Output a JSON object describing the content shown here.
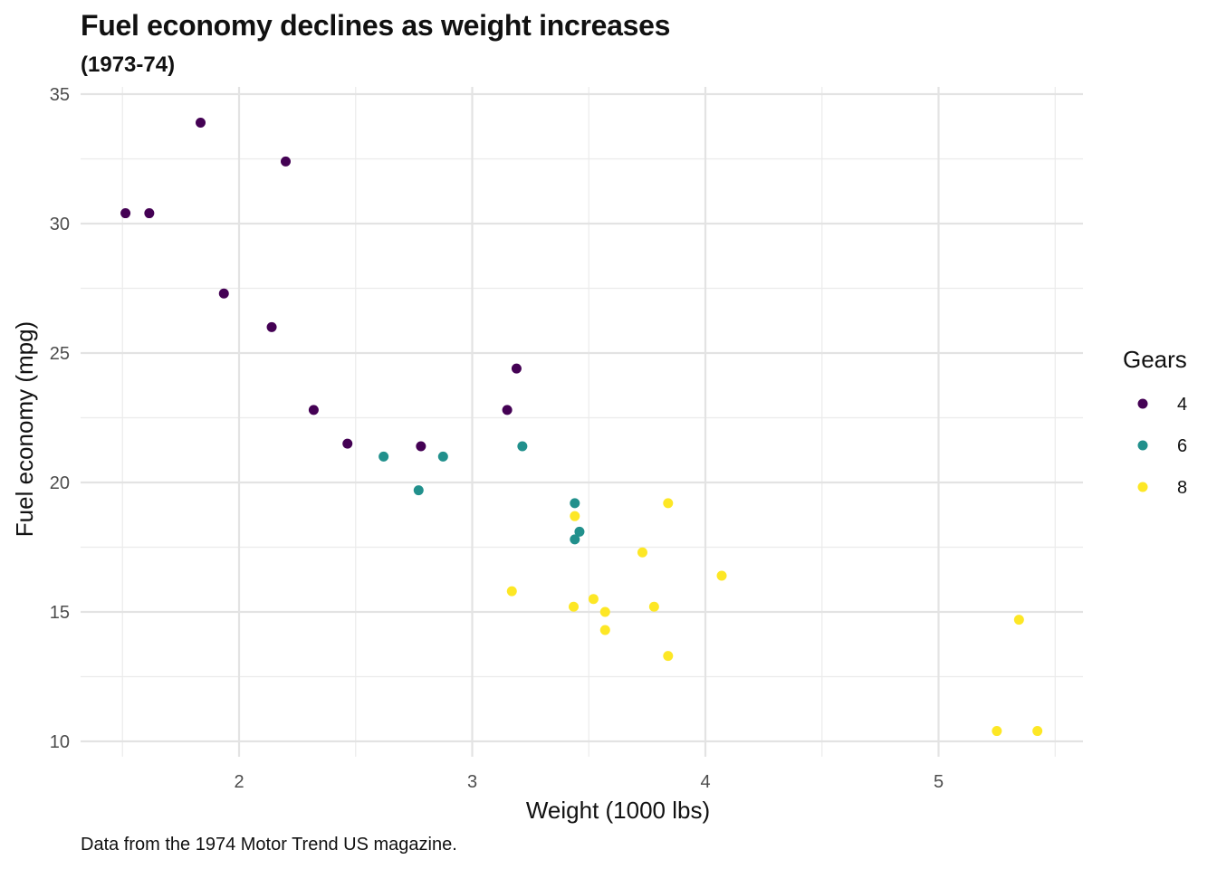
{
  "chart_data": {
    "type": "scatter",
    "title": "Fuel economy declines as weight increases",
    "subtitle": "(1973-74)",
    "caption": "Data from the 1974 Motor Trend US magazine.",
    "xlabel": "Weight (1000 lbs)",
    "ylabel": "Fuel economy (mpg)",
    "xlim": [
      1.35,
      5.6
    ],
    "ylim": [
      9.5,
      35
    ],
    "xticks": [
      2,
      3,
      4,
      5
    ],
    "yticks": [
      10,
      15,
      20,
      25,
      30,
      35
    ],
    "grid": true,
    "legend": {
      "title": "Gears",
      "position": "right"
    },
    "series": [
      {
        "name": "4",
        "color": "#440154",
        "points": [
          {
            "x": 1.513,
            "y": 30.4
          },
          {
            "x": 1.615,
            "y": 30.4
          },
          {
            "x": 1.835,
            "y": 33.9
          },
          {
            "x": 1.935,
            "y": 27.3
          },
          {
            "x": 2.2,
            "y": 32.4
          },
          {
            "x": 2.14,
            "y": 26.0
          },
          {
            "x": 2.32,
            "y": 22.8
          },
          {
            "x": 2.465,
            "y": 21.5
          },
          {
            "x": 2.78,
            "y": 21.4
          },
          {
            "x": 3.15,
            "y": 22.8
          },
          {
            "x": 3.19,
            "y": 24.4
          }
        ]
      },
      {
        "name": "6",
        "color": "#21908C",
        "points": [
          {
            "x": 2.62,
            "y": 21.0
          },
          {
            "x": 2.875,
            "y": 21.0
          },
          {
            "x": 2.77,
            "y": 19.7
          },
          {
            "x": 3.215,
            "y": 21.4
          },
          {
            "x": 3.44,
            "y": 19.2
          },
          {
            "x": 3.46,
            "y": 18.1
          },
          {
            "x": 3.44,
            "y": 17.8
          }
        ]
      },
      {
        "name": "8",
        "color": "#FDE725",
        "points": [
          {
            "x": 3.44,
            "y": 18.7
          },
          {
            "x": 3.84,
            "y": 19.2
          },
          {
            "x": 3.73,
            "y": 17.3
          },
          {
            "x": 4.07,
            "y": 16.4
          },
          {
            "x": 3.17,
            "y": 15.8
          },
          {
            "x": 3.52,
            "y": 15.5
          },
          {
            "x": 3.435,
            "y": 15.2
          },
          {
            "x": 3.78,
            "y": 15.2
          },
          {
            "x": 3.57,
            "y": 15.0
          },
          {
            "x": 3.57,
            "y": 14.3
          },
          {
            "x": 3.84,
            "y": 13.3
          },
          {
            "x": 5.345,
            "y": 14.7
          },
          {
            "x": 5.25,
            "y": 10.4
          },
          {
            "x": 5.424,
            "y": 10.4
          }
        ]
      }
    ]
  }
}
